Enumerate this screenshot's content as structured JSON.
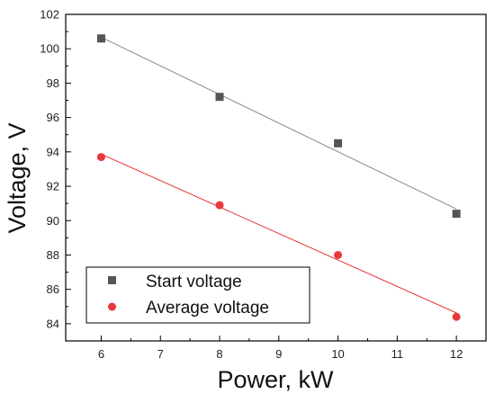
{
  "chart_data": {
    "type": "scatter",
    "xlabel": "Power, kW",
    "ylabel": "Voltage, V",
    "xlim": [
      5.4,
      12.5
    ],
    "ylim": [
      83,
      102
    ],
    "xticks": [
      6,
      7,
      8,
      9,
      10,
      11,
      12
    ],
    "yticks": [
      84,
      86,
      88,
      90,
      92,
      94,
      96,
      98,
      100,
      102
    ],
    "grid": false,
    "legend_position": "bottom-left",
    "series": [
      {
        "name": "Start voltage",
        "marker": "square",
        "color": "#555555",
        "fit_color": "#888888",
        "x": [
          6,
          8,
          10,
          12
        ],
        "y": [
          100.6,
          97.2,
          94.5,
          90.4
        ]
      },
      {
        "name": "Average voltage",
        "marker": "circle",
        "color": "#e8383b",
        "fit_color": "#e8383b",
        "x": [
          6,
          8,
          10,
          12
        ],
        "y": [
          93.7,
          90.9,
          88.0,
          84.4
        ]
      }
    ]
  }
}
